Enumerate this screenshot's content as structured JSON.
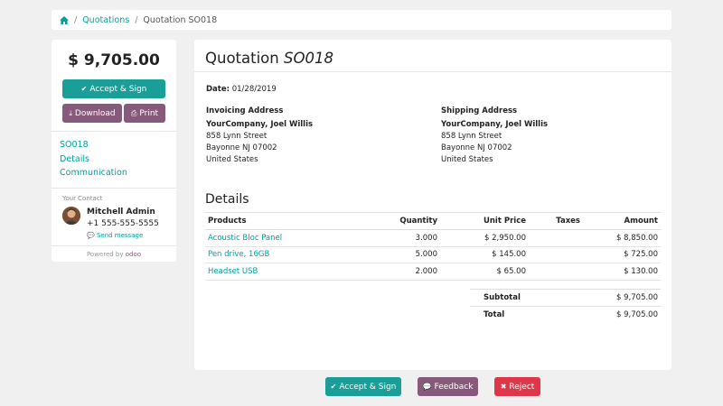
{
  "breadcrumb": {
    "quotations": "Quotations",
    "current": "Quotation SO018"
  },
  "sidebar": {
    "amount": "$ 9,705.00",
    "accept_label": "Accept & Sign",
    "download_label": "Download",
    "print_label": "Print",
    "nav": [
      {
        "label": "SO018"
      },
      {
        "label": "Details"
      },
      {
        "label": "Communication"
      }
    ],
    "contact_label": "Your Contact",
    "contact_name": "Mitchell Admin",
    "contact_phone": "+1 555-555-5555",
    "send_message": "Send message",
    "powered_by": "Powered by",
    "odoo": "odoo"
  },
  "main": {
    "title_prefix": "Quotation",
    "title_ref": "SO018",
    "date_label": "Date:",
    "date_value": "01/28/2019",
    "invoicing": {
      "heading": "Invoicing Address",
      "name": "YourCompany, Joel Willis",
      "street": "858 Lynn Street",
      "city": "Bayonne NJ 07002",
      "country": "United States"
    },
    "shipping": {
      "heading": "Shipping Address",
      "name": "YourCompany, Joel Willis",
      "street": "858 Lynn Street",
      "city": "Bayonne NJ 07002",
      "country": "United States"
    },
    "details_title": "Details",
    "columns": {
      "products": "Products",
      "quantity": "Quantity",
      "unit_price": "Unit Price",
      "taxes": "Taxes",
      "amount": "Amount"
    },
    "lines": [
      {
        "product": "Acoustic Bloc Panel",
        "quantity": "3.000",
        "unit_price": "$ 2,950.00",
        "taxes": "",
        "amount": "$ 8,850.00"
      },
      {
        "product": "Pen drive, 16GB",
        "quantity": "5.000",
        "unit_price": "$ 145.00",
        "taxes": "",
        "amount": "$ 725.00"
      },
      {
        "product": "Headset USB",
        "quantity": "2.000",
        "unit_price": "$ 65.00",
        "taxes": "",
        "amount": "$ 130.00"
      }
    ],
    "subtotal_label": "Subtotal",
    "subtotal_value": "$ 9,705.00",
    "total_label": "Total",
    "total_value": "$ 9,705.00"
  },
  "footer": {
    "accept_label": "Accept & Sign",
    "feedback_label": "Feedback",
    "reject_label": "Reject"
  },
  "colors": {
    "accent": "#00A09D",
    "purple": "#875A7B",
    "danger": "#E0364A"
  }
}
